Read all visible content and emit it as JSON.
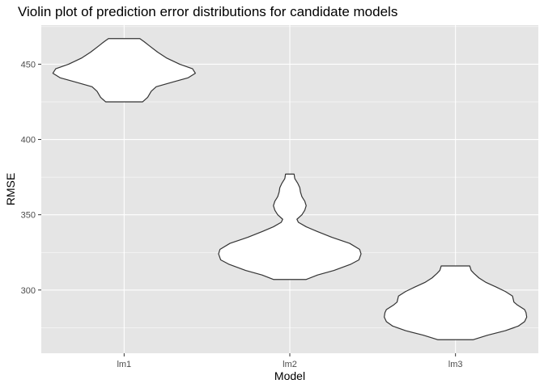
{
  "chart_data": {
    "type": "violin",
    "title": "Violin plot of prediction error distributions for candidate models",
    "xlabel": "Model",
    "ylabel": "RMSE",
    "categories": [
      "lm1",
      "lm2",
      "lm3"
    ],
    "ylim": [
      258,
      476
    ],
    "y_ticks": [
      300,
      350,
      400,
      450
    ],
    "grid": true,
    "panel_background": "#e5e5e5",
    "grid_color": "#ffffff",
    "violin_fill": "#ffffff",
    "violin_outline": "#333333",
    "violins": [
      {
        "category": "lm1",
        "min": 425,
        "max": 467,
        "profile": [
          [
            425,
            0.26
          ],
          [
            428,
            0.33
          ],
          [
            432,
            0.38
          ],
          [
            435,
            0.45
          ],
          [
            438,
            0.67
          ],
          [
            441,
            0.9
          ],
          [
            444,
            1.0
          ],
          [
            447,
            0.96
          ],
          [
            450,
            0.78
          ],
          [
            454,
            0.6
          ],
          [
            458,
            0.47
          ],
          [
            462,
            0.36
          ],
          [
            465,
            0.28
          ],
          [
            467,
            0.22
          ]
        ]
      },
      {
        "category": "lm2",
        "min": 307,
        "max": 377,
        "profile": [
          [
            307,
            0.23
          ],
          [
            310,
            0.39
          ],
          [
            313,
            0.62
          ],
          [
            317,
            0.85
          ],
          [
            320,
            0.97
          ],
          [
            324,
            1.0
          ],
          [
            327,
            0.98
          ],
          [
            331,
            0.84
          ],
          [
            335,
            0.59
          ],
          [
            339,
            0.38
          ],
          [
            342,
            0.23
          ],
          [
            345,
            0.12
          ],
          [
            347,
            0.1
          ],
          [
            350,
            0.17
          ],
          [
            353,
            0.21
          ],
          [
            356,
            0.23
          ],
          [
            359,
            0.21
          ],
          [
            362,
            0.17
          ],
          [
            365,
            0.15
          ],
          [
            368,
            0.14
          ],
          [
            371,
            0.11
          ],
          [
            374,
            0.07
          ],
          [
            377,
            0.06
          ]
        ]
      },
      {
        "category": "lm3",
        "min": 267,
        "max": 316,
        "profile": [
          [
            267,
            0.25
          ],
          [
            270,
            0.45
          ],
          [
            273,
            0.7
          ],
          [
            276,
            0.88
          ],
          [
            279,
            0.97
          ],
          [
            282,
            1.0
          ],
          [
            285,
            0.99
          ],
          [
            287,
            0.97
          ],
          [
            290,
            0.87
          ],
          [
            292,
            0.82
          ],
          [
            294,
            0.81
          ],
          [
            296,
            0.8
          ],
          [
            299,
            0.7
          ],
          [
            302,
            0.57
          ],
          [
            305,
            0.43
          ],
          [
            308,
            0.33
          ],
          [
            311,
            0.26
          ],
          [
            313,
            0.22
          ],
          [
            316,
            0.2
          ]
        ]
      }
    ]
  }
}
